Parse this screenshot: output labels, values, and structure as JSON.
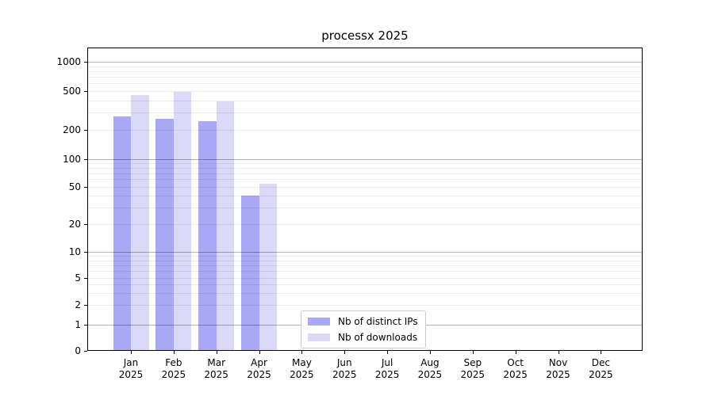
{
  "chart_data": {
    "type": "bar",
    "title": "processx 2025",
    "categories": [
      "Jan 2025",
      "Feb 2025",
      "Mar 2025",
      "Apr 2025",
      "May 2025",
      "Jun 2025",
      "Jul 2025",
      "Aug 2025",
      "Sep 2025",
      "Oct 2025",
      "Nov 2025",
      "Dec 2025"
    ],
    "series": [
      {
        "name": "Nb of distinct IPs",
        "color": "#a8a8f5",
        "values": [
          274,
          262,
          246,
          40,
          null,
          null,
          null,
          null,
          null,
          null,
          null,
          null
        ]
      },
      {
        "name": "Nb of downloads",
        "color": "#dadaf8",
        "values": [
          452,
          487,
          392,
          54,
          null,
          null,
          null,
          null,
          null,
          null,
          null,
          null
        ]
      }
    ],
    "xlabel": "",
    "ylabel": "",
    "yscale": "log (linear segment from 0 to 1)",
    "yticks": [
      0,
      1,
      2,
      5,
      10,
      20,
      50,
      100,
      200,
      500,
      1000
    ],
    "ylim": [
      0,
      1400
    ],
    "grid": "horizontal major + minor log gridlines, drawn over bars",
    "legend_position": "lower center, inside plot"
  },
  "colors": {
    "bar_distinct_ips": "#a8a8f5",
    "bar_downloads": "#dadaf8",
    "grid_major": "#b3b3b3",
    "grid_minor": "#ebebeb",
    "spine": "#000000",
    "legend_border": "#cbcbcb"
  }
}
